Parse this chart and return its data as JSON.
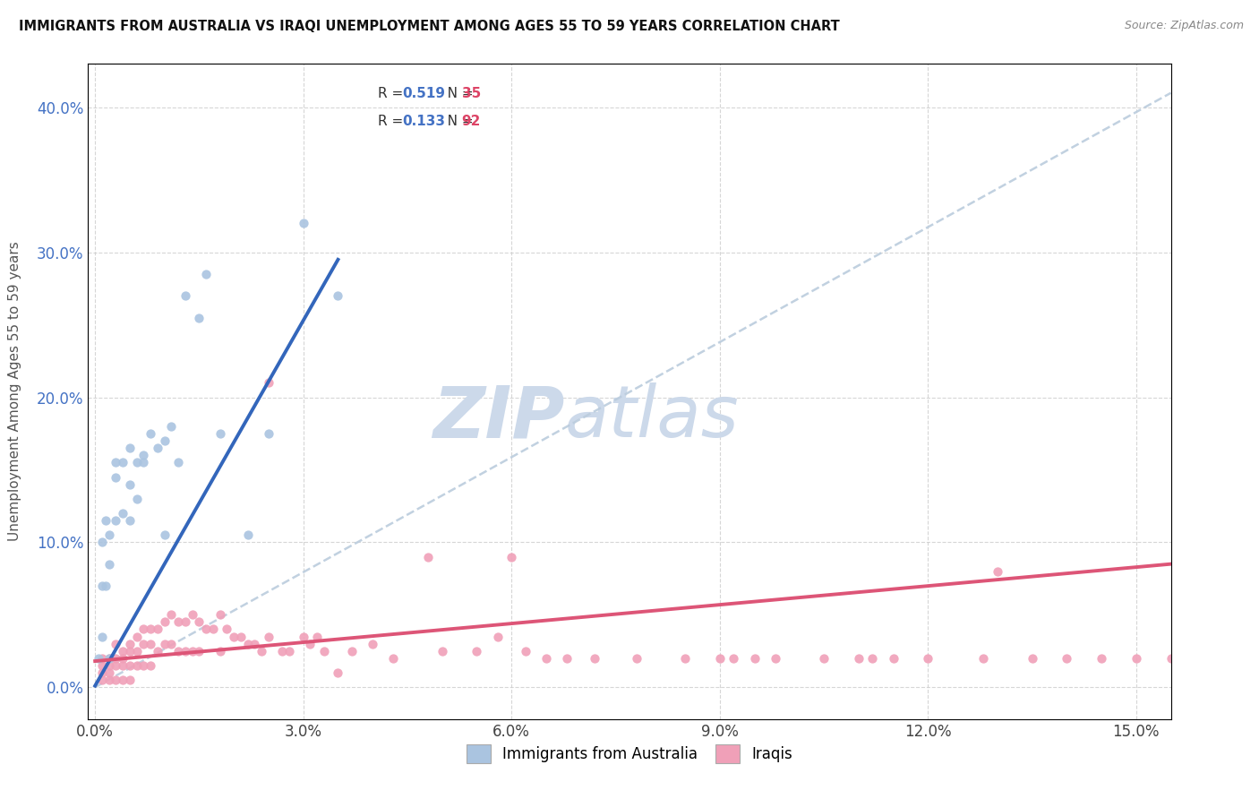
{
  "title": "IMMIGRANTS FROM AUSTRALIA VS IRAQI UNEMPLOYMENT AMONG AGES 55 TO 59 YEARS CORRELATION CHART",
  "source": "Source: ZipAtlas.com",
  "xlabel_ticks": [
    "0.0%",
    "3.0%",
    "6.0%",
    "9.0%",
    "12.0%",
    "15.0%"
  ],
  "xlabel_vals": [
    0.0,
    0.03,
    0.06,
    0.09,
    0.12,
    0.15
  ],
  "ylabel_ticks": [
    "0.0%",
    "10.0%",
    "20.0%",
    "30.0%",
    "40.0%"
  ],
  "ylabel_vals": [
    0.0,
    0.1,
    0.2,
    0.3,
    0.4
  ],
  "xlim": [
    -0.001,
    0.155
  ],
  "ylim": [
    -0.022,
    0.43
  ],
  "ylabel": "Unemployment Among Ages 55 to 59 years",
  "watermark": "ZIPatlas",
  "watermark_color": "#ccd9ea",
  "australia_scatter_x": [
    0.0005,
    0.001,
    0.001,
    0.001,
    0.0015,
    0.0015,
    0.002,
    0.002,
    0.002,
    0.003,
    0.003,
    0.003,
    0.004,
    0.004,
    0.005,
    0.005,
    0.005,
    0.006,
    0.006,
    0.007,
    0.007,
    0.008,
    0.009,
    0.01,
    0.01,
    0.011,
    0.012,
    0.013,
    0.015,
    0.016,
    0.018,
    0.022,
    0.025,
    0.03,
    0.035
  ],
  "australia_scatter_y": [
    0.02,
    0.035,
    0.07,
    0.1,
    0.07,
    0.115,
    0.085,
    0.105,
    0.02,
    0.115,
    0.145,
    0.155,
    0.12,
    0.155,
    0.14,
    0.165,
    0.115,
    0.13,
    0.155,
    0.16,
    0.155,
    0.175,
    0.165,
    0.17,
    0.105,
    0.18,
    0.155,
    0.27,
    0.255,
    0.285,
    0.175,
    0.105,
    0.175,
    0.32,
    0.27
  ],
  "iraq_scatter_x": [
    0.001,
    0.001,
    0.001,
    0.001,
    0.002,
    0.002,
    0.002,
    0.002,
    0.003,
    0.003,
    0.003,
    0.003,
    0.004,
    0.004,
    0.004,
    0.004,
    0.005,
    0.005,
    0.005,
    0.005,
    0.006,
    0.006,
    0.006,
    0.007,
    0.007,
    0.007,
    0.008,
    0.008,
    0.008,
    0.009,
    0.009,
    0.01,
    0.01,
    0.011,
    0.011,
    0.012,
    0.012,
    0.013,
    0.013,
    0.014,
    0.014,
    0.015,
    0.015,
    0.016,
    0.017,
    0.018,
    0.018,
    0.019,
    0.02,
    0.021,
    0.022,
    0.023,
    0.024,
    0.025,
    0.027,
    0.028,
    0.03,
    0.031,
    0.032,
    0.033,
    0.035,
    0.037,
    0.04,
    0.043,
    0.05,
    0.055,
    0.058,
    0.062,
    0.065,
    0.068,
    0.072,
    0.078,
    0.085,
    0.092,
    0.098,
    0.105,
    0.112,
    0.12,
    0.128,
    0.135,
    0.14,
    0.145,
    0.15,
    0.155,
    0.06,
    0.09,
    0.095,
    0.11,
    0.115,
    0.13,
    0.025,
    0.048
  ],
  "iraq_scatter_y": [
    0.02,
    0.015,
    0.01,
    0.005,
    0.02,
    0.015,
    0.01,
    0.005,
    0.03,
    0.02,
    0.015,
    0.005,
    0.025,
    0.02,
    0.015,
    0.005,
    0.03,
    0.025,
    0.015,
    0.005,
    0.035,
    0.025,
    0.015,
    0.04,
    0.03,
    0.015,
    0.04,
    0.03,
    0.015,
    0.04,
    0.025,
    0.045,
    0.03,
    0.05,
    0.03,
    0.045,
    0.025,
    0.045,
    0.025,
    0.05,
    0.025,
    0.045,
    0.025,
    0.04,
    0.04,
    0.05,
    0.025,
    0.04,
    0.035,
    0.035,
    0.03,
    0.03,
    0.025,
    0.035,
    0.025,
    0.025,
    0.035,
    0.03,
    0.035,
    0.025,
    0.01,
    0.025,
    0.03,
    0.02,
    0.025,
    0.025,
    0.035,
    0.025,
    0.02,
    0.02,
    0.02,
    0.02,
    0.02,
    0.02,
    0.02,
    0.02,
    0.02,
    0.02,
    0.02,
    0.02,
    0.02,
    0.02,
    0.02,
    0.02,
    0.09,
    0.02,
    0.02,
    0.02,
    0.02,
    0.08,
    0.21,
    0.09
  ],
  "australia_line_x": [
    0.0,
    0.035
  ],
  "australia_line_y": [
    0.001,
    0.295
  ],
  "dashed_line_x": [
    0.0,
    0.155
  ],
  "dashed_line_y": [
    0.0,
    0.41
  ],
  "iraq_line_x": [
    0.0,
    0.155
  ],
  "iraq_line_y": [
    0.018,
    0.085
  ],
  "scatter_size": 55,
  "australia_color": "#aac4e0",
  "iraq_color": "#f0a0b8",
  "australia_line_color": "#3366bb",
  "iraq_line_color": "#dd5577",
  "dashed_line_color": "#bbccdd"
}
